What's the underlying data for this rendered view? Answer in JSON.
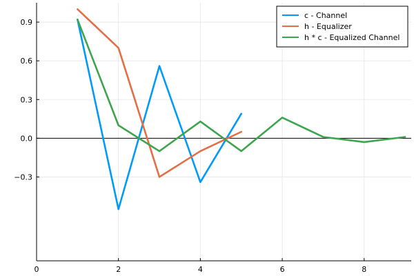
{
  "chart_data": {
    "type": "line",
    "title": "",
    "xlabel": "",
    "ylabel": "",
    "xlim": [
      0,
      9.15
    ],
    "ylim": [
      -0.95,
      1.05
    ],
    "xticks": [
      0,
      2,
      4,
      6,
      8
    ],
    "yticks": [
      -0.3,
      0.0,
      0.3,
      0.6,
      0.9
    ],
    "xtick_labels": [
      "0",
      "2",
      "4",
      "6",
      "8"
    ],
    "ytick_labels": [
      "−0.3",
      "0.0",
      "0.3",
      "0.6",
      "0.9"
    ],
    "grid": true,
    "hline_at": 0,
    "legend_position": "top-right",
    "series": [
      {
        "name": "c - Channel",
        "color": "#009AFA",
        "x": [
          1,
          2,
          3,
          4,
          5
        ],
        "y": [
          0.92,
          -0.55,
          0.56,
          -0.34,
          0.19
        ]
      },
      {
        "name": "h - Equalizer",
        "color": "#E26F46",
        "x": [
          1,
          2,
          3,
          4,
          5
        ],
        "y": [
          1.0,
          0.7,
          -0.3,
          -0.1,
          0.05
        ]
      },
      {
        "name": "h * c - Equalized Channel",
        "color": "#3EA44E",
        "x": [
          1,
          2,
          3,
          4,
          5,
          6,
          7,
          8,
          9
        ],
        "y": [
          0.92,
          0.1,
          -0.1,
          0.13,
          -0.1,
          0.16,
          0.01,
          -0.03,
          0.01
        ]
      }
    ]
  }
}
